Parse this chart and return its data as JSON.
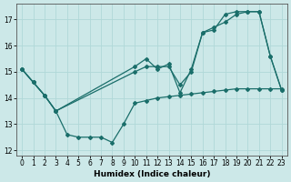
{
  "title": "",
  "xlabel": "Humidex (Indice chaleur)",
  "ylabel": "",
  "xlim": [
    -0.5,
    23.5
  ],
  "ylim": [
    11.8,
    17.6
  ],
  "yticks": [
    12,
    13,
    14,
    15,
    16,
    17
  ],
  "xticks": [
    0,
    1,
    2,
    3,
    4,
    5,
    6,
    7,
    8,
    9,
    10,
    11,
    12,
    13,
    14,
    15,
    16,
    17,
    18,
    19,
    20,
    21,
    22,
    23
  ],
  "bg_color": "#cce8e8",
  "grid_color": "#b0d8d8",
  "line_color": "#1a6e6a",
  "line1_x": [
    0,
    1,
    2,
    3,
    10,
    11,
    12,
    13,
    14,
    15,
    16,
    17,
    18,
    19,
    20,
    21,
    22,
    23
  ],
  "line1_y": [
    15.1,
    14.6,
    14.1,
    13.5,
    15.2,
    15.5,
    15.1,
    15.3,
    14.2,
    15.1,
    16.5,
    16.6,
    17.2,
    17.3,
    17.3,
    17.3,
    15.6,
    14.3
  ],
  "line2_x": [
    0,
    1,
    2,
    3,
    10,
    11,
    12,
    13,
    14,
    15,
    16,
    17,
    18,
    19,
    20,
    21,
    22,
    23
  ],
  "line2_y": [
    15.1,
    14.6,
    14.1,
    13.5,
    15.0,
    15.2,
    15.2,
    15.2,
    14.5,
    15.0,
    16.5,
    16.7,
    16.9,
    17.2,
    17.3,
    17.3,
    15.6,
    14.3
  ],
  "line3_x": [
    0,
    1,
    2,
    3,
    4,
    5,
    6,
    7,
    8,
    9,
    10,
    11,
    12,
    13,
    14,
    15,
    16,
    17,
    18,
    19,
    20,
    21,
    22,
    23
  ],
  "line3_y": [
    15.1,
    14.6,
    14.1,
    13.5,
    12.6,
    12.5,
    12.5,
    12.5,
    12.3,
    13.0,
    13.8,
    13.9,
    14.0,
    14.05,
    14.1,
    14.15,
    14.2,
    14.25,
    14.3,
    14.35,
    14.35,
    14.35,
    14.35,
    14.35
  ]
}
